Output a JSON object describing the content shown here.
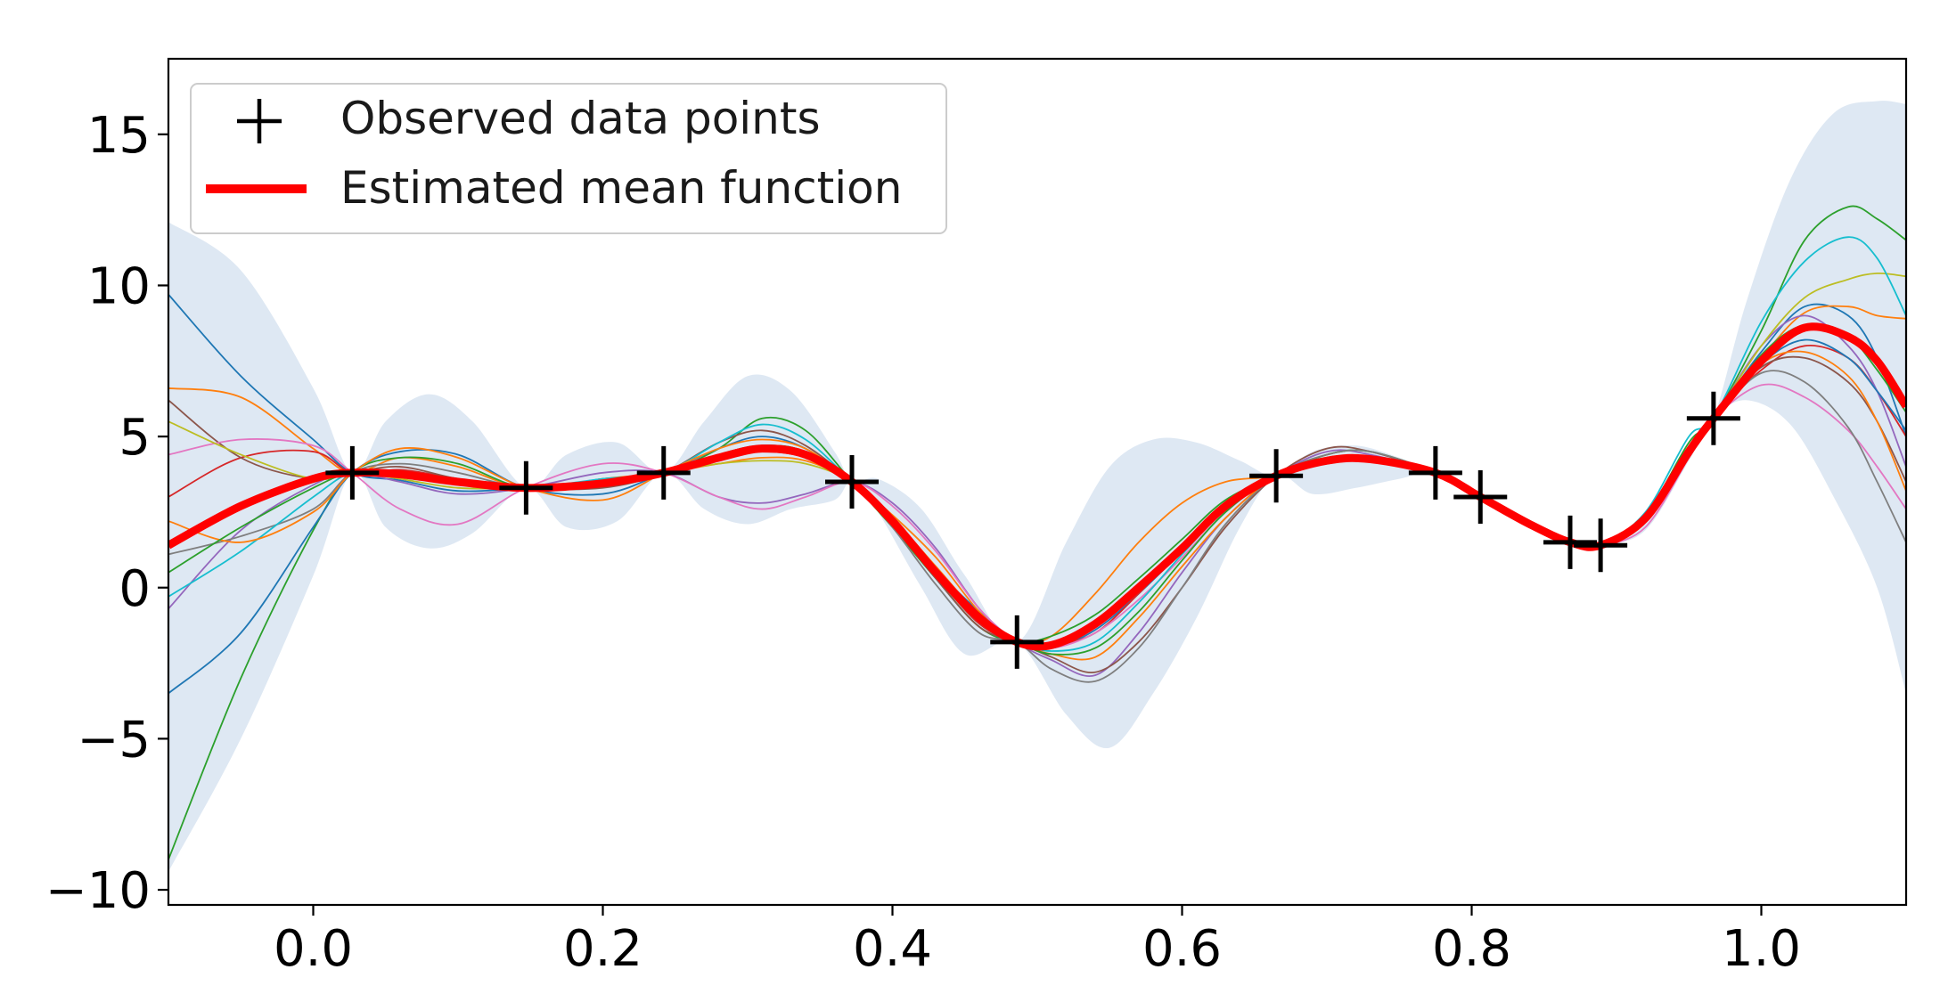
{
  "chart_data": {
    "type": "line",
    "title": "",
    "xlabel": "",
    "ylabel": "",
    "xlim": [
      -0.1,
      1.1
    ],
    "ylim": [
      -10.5,
      17.5
    ],
    "grid": false,
    "legend_placement": "top-left",
    "x_ticks": [
      0.0,
      0.2,
      0.4,
      0.6,
      0.8,
      1.0
    ],
    "x_tick_labels": [
      "0.0",
      "0.2",
      "0.4",
      "0.6",
      "0.8",
      "1.0"
    ],
    "y_ticks": [
      -10,
      -5,
      0,
      5,
      10,
      15
    ],
    "y_tick_labels": [
      "−10",
      "−5",
      "0",
      "5",
      "10",
      "15"
    ],
    "legend": {
      "observed_label": "Observed data points",
      "mean_label": "Estimated mean function"
    },
    "colors": {
      "mean": "#ff0000",
      "band": "#dee8f3",
      "points": "#000000",
      "samples": [
        "#1f77b4",
        "#ff7f0e",
        "#2ca02c",
        "#d62728",
        "#9467bd",
        "#8c564b",
        "#e377c2",
        "#7f7f7f",
        "#bcbd22",
        "#17becf"
      ]
    },
    "observed_points": {
      "x": [
        0.027,
        0.147,
        0.242,
        0.372,
        0.486,
        0.665,
        0.775,
        0.806,
        0.868,
        0.889,
        0.967
      ],
      "y": [
        3.8,
        3.3,
        3.8,
        3.5,
        -1.8,
        3.7,
        3.8,
        3.0,
        1.5,
        1.4,
        5.6
      ]
    },
    "mean_function": {
      "x": [
        -0.1,
        -0.05,
        0.0,
        0.027,
        0.06,
        0.1,
        0.147,
        0.2,
        0.242,
        0.28,
        0.31,
        0.34,
        0.372,
        0.4,
        0.43,
        0.46,
        0.486,
        0.51,
        0.54,
        0.57,
        0.6,
        0.63,
        0.665,
        0.7,
        0.73,
        0.775,
        0.806,
        0.84,
        0.868,
        0.889,
        0.92,
        0.95,
        0.967,
        1.0,
        1.03,
        1.06,
        1.08,
        1.1
      ],
      "y": [
        1.4,
        2.7,
        3.6,
        3.8,
        3.75,
        3.5,
        3.3,
        3.45,
        3.8,
        4.3,
        4.6,
        4.4,
        3.5,
        2.2,
        0.5,
        -1.0,
        -1.8,
        -1.9,
        -1.2,
        0.0,
        1.3,
        2.7,
        3.7,
        4.2,
        4.25,
        3.8,
        3.0,
        2.1,
        1.5,
        1.4,
        2.3,
        4.5,
        5.6,
        7.5,
        8.6,
        8.3,
        7.5,
        6.0
      ]
    },
    "confidence_band": {
      "x": [
        -0.1,
        -0.05,
        0.0,
        0.027,
        0.05,
        0.08,
        0.11,
        0.147,
        0.175,
        0.21,
        0.242,
        0.27,
        0.3,
        0.33,
        0.36,
        0.372,
        0.39,
        0.42,
        0.45,
        0.486,
        0.52,
        0.55,
        0.58,
        0.61,
        0.64,
        0.665,
        0.69,
        0.72,
        0.75,
        0.775,
        0.806,
        0.84,
        0.868,
        0.889,
        0.92,
        0.95,
        0.967,
        0.99,
        1.02,
        1.05,
        1.08,
        1.1
      ],
      "upper": [
        12.1,
        10.5,
        6.6,
        3.8,
        5.5,
        6.4,
        5.5,
        3.3,
        4.4,
        4.8,
        3.8,
        5.5,
        7.0,
        6.5,
        4.5,
        3.5,
        3.6,
        2.6,
        0.4,
        -1.8,
        1.5,
        4.0,
        4.9,
        4.8,
        4.2,
        3.7,
        4.5,
        4.7,
        4.3,
        3.8,
        3.0,
        2.2,
        1.5,
        1.4,
        2.5,
        4.5,
        5.6,
        9.5,
        13.5,
        15.7,
        16.1,
        16.0
      ],
      "lower": [
        -9.4,
        -5.0,
        0.4,
        3.8,
        2.0,
        1.3,
        1.8,
        3.3,
        2.0,
        2.2,
        3.8,
        2.6,
        2.1,
        2.6,
        2.9,
        3.5,
        2.5,
        0.0,
        -2.2,
        -1.8,
        -4.2,
        -5.3,
        -3.5,
        -1.0,
        2.0,
        3.7,
        3.1,
        3.3,
        3.6,
        3.8,
        3.0,
        2.0,
        1.5,
        1.4,
        1.9,
        4.2,
        5.6,
        6.2,
        5.4,
        3.0,
        0.0,
        -3.5
      ]
    },
    "sample_x": [
      -0.1,
      -0.05,
      0.0,
      0.027,
      0.06,
      0.1,
      0.147,
      0.2,
      0.242,
      0.28,
      0.31,
      0.34,
      0.372,
      0.4,
      0.43,
      0.46,
      0.486,
      0.51,
      0.54,
      0.57,
      0.6,
      0.63,
      0.665,
      0.7,
      0.73,
      0.775,
      0.806,
      0.84,
      0.868,
      0.889,
      0.92,
      0.95,
      0.967,
      1.0,
      1.03,
      1.06,
      1.08,
      1.1
    ],
    "series": [
      {
        "values": [
          9.7,
          7.0,
          4.9,
          3.8,
          3.55,
          3.2,
          3.3,
          3.5,
          3.8,
          4.4,
          4.7,
          4.5,
          3.5,
          2.3,
          0.6,
          -0.8,
          -1.8,
          -2.0,
          -1.4,
          -0.2,
          1.2,
          2.6,
          3.7,
          4.2,
          4.3,
          3.8,
          3.0,
          2.1,
          1.5,
          1.4,
          2.3,
          4.4,
          5.6,
          7.8,
          9.3,
          9.0,
          7.6,
          5.0
        ]
      },
      {
        "values": [
          6.6,
          6.3,
          4.6,
          3.8,
          4.3,
          4.0,
          3.3,
          3.6,
          3.8,
          4.1,
          4.3,
          4.2,
          3.5,
          2.4,
          1.0,
          -0.8,
          -1.8,
          -1.6,
          -0.2,
          1.5,
          2.8,
          3.5,
          3.7,
          4.2,
          4.3,
          3.8,
          3.0,
          2.1,
          1.5,
          1.4,
          2.2,
          4.5,
          5.6,
          7.6,
          9.1,
          9.3,
          9.0,
          8.9
        ]
      },
      {
        "values": [
          -9.0,
          -3.0,
          1.9,
          3.8,
          4.3,
          4.1,
          3.3,
          3.6,
          3.8,
          4.6,
          5.6,
          5.2,
          3.5,
          2.0,
          0.3,
          -1.3,
          -1.8,
          -1.6,
          -0.9,
          0.3,
          1.6,
          2.9,
          3.7,
          4.4,
          4.5,
          3.8,
          3.0,
          2.1,
          1.5,
          1.4,
          2.4,
          4.8,
          5.6,
          8.5,
          11.5,
          12.6,
          12.2,
          11.5
        ]
      },
      {
        "values": [
          3.0,
          4.3,
          4.5,
          3.8,
          3.9,
          3.6,
          3.3,
          3.4,
          3.8,
          4.3,
          4.5,
          4.3,
          3.5,
          2.2,
          0.4,
          -1.2,
          -1.8,
          -1.9,
          -1.5,
          -0.2,
          1.3,
          2.7,
          3.7,
          4.1,
          4.2,
          3.8,
          3.0,
          2.1,
          1.5,
          1.4,
          2.3,
          4.3,
          5.6,
          7.2,
          8.0,
          7.6,
          6.5,
          5.0
        ]
      },
      {
        "values": [
          -0.7,
          1.9,
          3.4,
          3.8,
          3.5,
          3.1,
          3.3,
          3.8,
          3.8,
          3.0,
          2.8,
          3.1,
          3.5,
          2.8,
          1.3,
          -0.7,
          -1.8,
          -2.4,
          -2.9,
          -1.5,
          0.5,
          2.3,
          3.7,
          4.5,
          4.4,
          3.8,
          3.0,
          2.1,
          1.5,
          1.4,
          2.2,
          4.6,
          5.6,
          8.0,
          9.0,
          8.0,
          6.5,
          4.0
        ]
      },
      {
        "values": [
          6.2,
          4.3,
          3.6,
          3.8,
          4.0,
          3.6,
          3.3,
          3.3,
          3.8,
          4.8,
          5.2,
          4.7,
          3.5,
          2.1,
          0.3,
          -1.3,
          -1.8,
          -2.3,
          -2.8,
          -1.8,
          0.0,
          2.0,
          3.7,
          4.6,
          4.5,
          3.8,
          3.0,
          2.1,
          1.5,
          1.4,
          2.2,
          4.5,
          5.6,
          7.3,
          7.6,
          6.8,
          5.5,
          3.5
        ]
      },
      {
        "values": [
          4.4,
          4.9,
          4.7,
          3.8,
          2.6,
          2.1,
          3.3,
          4.1,
          3.8,
          3.0,
          2.6,
          3.0,
          3.5,
          2.7,
          1.2,
          -0.7,
          -1.8,
          -2.0,
          -1.5,
          -0.4,
          1.0,
          2.5,
          3.7,
          4.2,
          4.3,
          3.8,
          3.0,
          2.1,
          1.5,
          1.4,
          2.0,
          4.3,
          5.6,
          6.7,
          6.3,
          5.2,
          4.0,
          2.6
        ]
      },
      {
        "values": [
          1.1,
          1.7,
          2.6,
          3.8,
          4.1,
          3.8,
          3.3,
          3.4,
          3.8,
          4.3,
          4.6,
          4.4,
          3.5,
          2.0,
          0.1,
          -1.5,
          -1.8,
          -2.7,
          -3.1,
          -2.0,
          0.0,
          2.1,
          3.7,
          4.4,
          4.5,
          3.8,
          3.0,
          2.1,
          1.5,
          1.4,
          2.3,
          4.4,
          5.6,
          7.1,
          6.8,
          5.3,
          3.5,
          1.5
        ]
      },
      {
        "values": [
          5.5,
          4.4,
          3.6,
          3.8,
          3.6,
          3.3,
          3.3,
          3.4,
          3.8,
          4.1,
          4.2,
          4.1,
          3.5,
          2.3,
          0.6,
          -1.0,
          -1.8,
          -1.9,
          -1.3,
          -0.1,
          1.3,
          2.7,
          3.7,
          4.2,
          4.2,
          3.8,
          3.0,
          2.1,
          1.5,
          1.4,
          2.4,
          4.6,
          5.6,
          8.0,
          9.6,
          10.2,
          10.4,
          10.3
        ]
      },
      {
        "values": [
          -0.3,
          1.2,
          3.0,
          3.8,
          3.8,
          3.4,
          3.3,
          3.6,
          3.8,
          4.8,
          5.4,
          4.9,
          3.5,
          2.2,
          0.5,
          -1.1,
          -1.8,
          -2.1,
          -1.8,
          -0.5,
          1.1,
          2.6,
          3.7,
          4.3,
          4.3,
          3.8,
          3.0,
          2.1,
          1.5,
          1.4,
          2.5,
          5.0,
          5.6,
          8.8,
          10.8,
          11.6,
          10.9,
          9.0
        ]
      },
      {
        "values": [
          -3.5,
          -1.5,
          2.0,
          3.8,
          4.5,
          4.4,
          3.3,
          3.1,
          3.8,
          4.6,
          5.0,
          4.6,
          3.5,
          2.2,
          0.6,
          -1.0,
          -1.8,
          -1.8,
          -1.2,
          0.0,
          1.4,
          2.8,
          3.7,
          4.2,
          4.2,
          3.8,
          3.0,
          2.1,
          1.5,
          1.4,
          2.3,
          4.4,
          5.6,
          7.4,
          8.2,
          7.6,
          6.5,
          5.2
        ]
      },
      {
        "values": [
          2.2,
          1.5,
          2.5,
          3.8,
          4.6,
          4.3,
          3.3,
          2.9,
          3.8,
          4.6,
          4.9,
          4.6,
          3.5,
          2.3,
          0.7,
          -0.9,
          -1.8,
          -2.2,
          -2.3,
          -1.0,
          0.7,
          2.3,
          3.7,
          4.3,
          4.3,
          3.8,
          3.0,
          2.1,
          1.5,
          1.4,
          2.2,
          4.5,
          5.6,
          7.4,
          7.8,
          7.0,
          5.5,
          3.2
        ]
      },
      {
        "values": [
          0.5,
          2.0,
          3.3,
          3.8,
          3.7,
          3.5,
          3.3,
          3.5,
          3.8,
          4.4,
          4.7,
          4.5,
          3.5,
          2.2,
          0.4,
          -1.1,
          -1.8,
          -2.2,
          -2.0,
          -0.8,
          0.9,
          2.5,
          3.7,
          4.3,
          4.3,
          3.8,
          3.0,
          2.1,
          1.5,
          1.4,
          2.3,
          4.6,
          5.6,
          7.7,
          8.7,
          8.3,
          7.2,
          5.8
        ]
      }
    ]
  }
}
